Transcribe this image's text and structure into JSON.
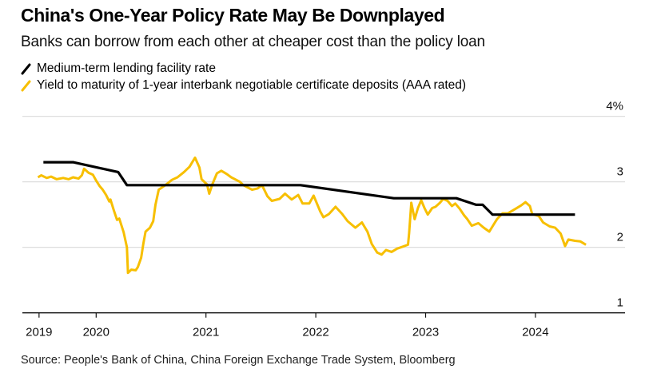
{
  "header": {
    "title": "China's One-Year Policy Rate May Be Downplayed",
    "subtitle": "Banks can borrow from each other at cheaper cost than the policy loan"
  },
  "legend": [
    {
      "label": "Medium-term lending facility rate",
      "color": "#000000"
    },
    {
      "label": "Yield to maturity of 1-year interbank negotiable certificate deposits (AAA rated)",
      "color": "#f7bf00"
    }
  ],
  "footer": {
    "source": "Source: People's Bank of China, China Foreign Exchange Trade System, Bloomberg"
  },
  "chart_data": {
    "type": "line",
    "title": "China's One-Year Policy Rate May Be Downplayed",
    "subtitle": "Banks can borrow from each other at cheaper cost than the policy loan",
    "xlabel": "",
    "ylabel": "%",
    "xlim": [
      2019.35,
      2024.82
    ],
    "ylim": [
      1,
      4
    ],
    "grid": true,
    "legend_position": "top-left",
    "x_ticks": [
      {
        "value": 2019.48,
        "label": "2019"
      },
      {
        "value": 2020,
        "label": "2020"
      },
      {
        "value": 2021,
        "label": "2021"
      },
      {
        "value": 2022,
        "label": "2022"
      },
      {
        "value": 2023,
        "label": "2023"
      },
      {
        "value": 2024,
        "label": "2024"
      }
    ],
    "y_ticks": [
      {
        "value": 4,
        "label": "4%"
      },
      {
        "value": 3,
        "label": "3"
      },
      {
        "value": 2,
        "label": "2"
      },
      {
        "value": 1,
        "label": "1"
      }
    ],
    "series": [
      {
        "name": "Medium-term lending facility rate",
        "color": "#000000",
        "points": [
          [
            2019.52,
            3.3
          ],
          [
            2019.79,
            3.3
          ],
          [
            2020.2,
            3.15
          ],
          [
            2020.28,
            2.95
          ],
          [
            2021.86,
            2.95
          ],
          [
            2022.71,
            2.75
          ],
          [
            2023.28,
            2.75
          ],
          [
            2023.46,
            2.65
          ],
          [
            2023.52,
            2.65
          ],
          [
            2023.61,
            2.5
          ],
          [
            2024.36,
            2.5
          ]
        ]
      },
      {
        "name": "Yield to maturity of 1-year interbank negotiable certificate deposits (AAA rated)",
        "color": "#f7bf00",
        "points": [
          [
            2019.47,
            3.07
          ],
          [
            2019.5,
            3.1
          ],
          [
            2019.55,
            3.06
          ],
          [
            2019.59,
            3.08
          ],
          [
            2019.64,
            3.04
          ],
          [
            2019.7,
            3.06
          ],
          [
            2019.75,
            3.04
          ],
          [
            2019.79,
            3.07
          ],
          [
            2019.84,
            3.05
          ],
          [
            2019.87,
            3.1
          ],
          [
            2019.89,
            3.2
          ],
          [
            2019.93,
            3.14
          ],
          [
            2019.97,
            3.11
          ],
          [
            2020.0,
            3.02
          ],
          [
            2020.03,
            2.94
          ],
          [
            2020.06,
            2.88
          ],
          [
            2020.09,
            2.8
          ],
          [
            2020.12,
            2.7
          ],
          [
            2020.13,
            2.73
          ],
          [
            2020.16,
            2.57
          ],
          [
            2020.19,
            2.42
          ],
          [
            2020.21,
            2.44
          ],
          [
            2020.25,
            2.23
          ],
          [
            2020.28,
            2.0
          ],
          [
            2020.29,
            1.61
          ],
          [
            2020.32,
            1.66
          ],
          [
            2020.36,
            1.65
          ],
          [
            2020.38,
            1.7
          ],
          [
            2020.41,
            1.84
          ],
          [
            2020.43,
            2.06
          ],
          [
            2020.45,
            2.24
          ],
          [
            2020.49,
            2.3
          ],
          [
            2020.52,
            2.4
          ],
          [
            2020.54,
            2.65
          ],
          [
            2020.57,
            2.88
          ],
          [
            2020.63,
            2.95
          ],
          [
            2020.69,
            3.03
          ],
          [
            2020.74,
            3.07
          ],
          [
            2020.8,
            3.15
          ],
          [
            2020.85,
            3.23
          ],
          [
            2020.9,
            3.37
          ],
          [
            2020.94,
            3.22
          ],
          [
            2020.96,
            3.04
          ],
          [
            2021.01,
            2.96
          ],
          [
            2021.03,
            2.82
          ],
          [
            2021.06,
            2.97
          ],
          [
            2021.1,
            3.13
          ],
          [
            2021.14,
            3.17
          ],
          [
            2021.19,
            3.12
          ],
          [
            2021.23,
            3.07
          ],
          [
            2021.31,
            3.0
          ],
          [
            2021.34,
            2.95
          ],
          [
            2021.42,
            2.88
          ],
          [
            2021.47,
            2.9
          ],
          [
            2021.51,
            2.95
          ],
          [
            2021.56,
            2.78
          ],
          [
            2021.6,
            2.71
          ],
          [
            2021.67,
            2.74
          ],
          [
            2021.72,
            2.82
          ],
          [
            2021.78,
            2.73
          ],
          [
            2021.84,
            2.8
          ],
          [
            2021.88,
            2.67
          ],
          [
            2021.94,
            2.67
          ],
          [
            2021.98,
            2.79
          ],
          [
            2022.04,
            2.55
          ],
          [
            2022.07,
            2.46
          ],
          [
            2022.12,
            2.51
          ],
          [
            2022.18,
            2.62
          ],
          [
            2022.24,
            2.51
          ],
          [
            2022.29,
            2.4
          ],
          [
            2022.36,
            2.3
          ],
          [
            2022.42,
            2.38
          ],
          [
            2022.47,
            2.24
          ],
          [
            2022.51,
            2.05
          ],
          [
            2022.56,
            1.92
          ],
          [
            2022.6,
            1.89
          ],
          [
            2022.64,
            1.96
          ],
          [
            2022.69,
            1.93
          ],
          [
            2022.74,
            1.98
          ],
          [
            2022.79,
            2.01
          ],
          [
            2022.84,
            2.04
          ],
          [
            2022.85,
            2.22
          ],
          [
            2022.87,
            2.68
          ],
          [
            2022.9,
            2.43
          ],
          [
            2022.93,
            2.6
          ],
          [
            2022.96,
            2.72
          ],
          [
            2022.99,
            2.6
          ],
          [
            2023.02,
            2.5
          ],
          [
            2023.06,
            2.6
          ],
          [
            2023.09,
            2.62
          ],
          [
            2023.13,
            2.68
          ],
          [
            2023.16,
            2.74
          ],
          [
            2023.2,
            2.71
          ],
          [
            2023.24,
            2.63
          ],
          [
            2023.27,
            2.67
          ],
          [
            2023.31,
            2.59
          ],
          [
            2023.35,
            2.49
          ],
          [
            2023.38,
            2.43
          ],
          [
            2023.42,
            2.33
          ],
          [
            2023.48,
            2.37
          ],
          [
            2023.53,
            2.3
          ],
          [
            2023.58,
            2.24
          ],
          [
            2023.62,
            2.35
          ],
          [
            2023.65,
            2.43
          ],
          [
            2023.7,
            2.52
          ],
          [
            2023.75,
            2.52
          ],
          [
            2023.78,
            2.55
          ],
          [
            2023.82,
            2.59
          ],
          [
            2023.87,
            2.64
          ],
          [
            2023.91,
            2.69
          ],
          [
            2023.95,
            2.63
          ],
          [
            2023.97,
            2.51
          ],
          [
            2024.03,
            2.48
          ],
          [
            2024.07,
            2.38
          ],
          [
            2024.13,
            2.32
          ],
          [
            2024.18,
            2.3
          ],
          [
            2024.23,
            2.21
          ],
          [
            2024.27,
            2.02
          ],
          [
            2024.3,
            2.12
          ],
          [
            2024.36,
            2.1
          ],
          [
            2024.41,
            2.09
          ],
          [
            2024.46,
            2.04
          ]
        ]
      }
    ]
  }
}
